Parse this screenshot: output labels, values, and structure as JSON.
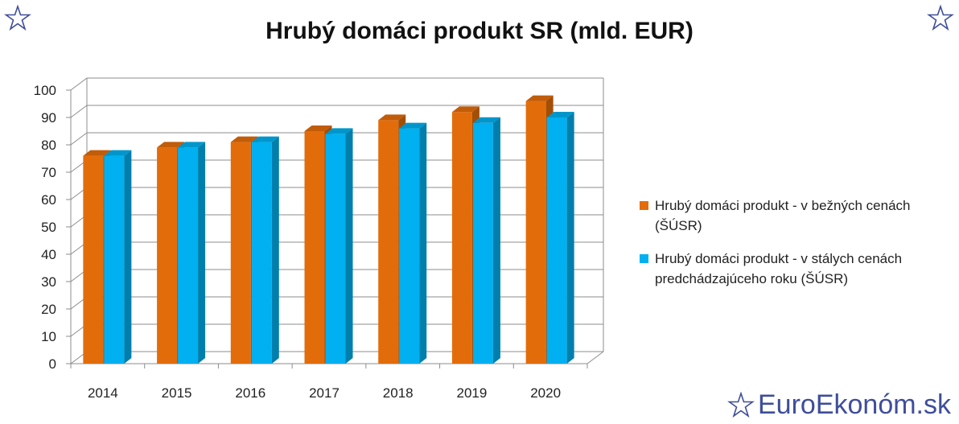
{
  "chart_data": {
    "type": "bar",
    "title": "Hrubý domáci produkt SR (mld. EUR)",
    "xlabel": "",
    "ylabel": "",
    "categories": [
      "2014",
      "2015",
      "2016",
      "2017",
      "2018",
      "2019",
      "2020"
    ],
    "ylim": [
      0,
      100
    ],
    "yticks": [
      "0",
      "10",
      "20",
      "30",
      "40",
      "50",
      "60",
      "70",
      "80",
      "90",
      "100"
    ],
    "grid": true,
    "legend_position": "right",
    "series": [
      {
        "name": "Hrubý domáci produkt - v bežných cenách (ŠÚSR)",
        "color": "#e36c0a",
        "values": [
          76,
          79,
          81,
          85,
          89,
          92,
          96
        ]
      },
      {
        "name": "Hrubý domáci produkt - v stálych cenách predchádzajúceho roku (ŠÚSR)",
        "color": "#00b0f0",
        "values": [
          76,
          79,
          81,
          84,
          86,
          88,
          90
        ]
      }
    ]
  },
  "brand": {
    "text": "EuroEkonóm.sk",
    "icon": "star-outline-icon",
    "color": "#3f4e9b"
  }
}
